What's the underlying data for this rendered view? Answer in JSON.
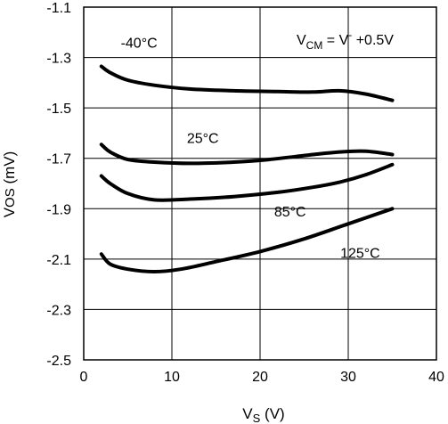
{
  "chart_data": {
    "type": "line",
    "xlabel": "V",
    "xlabel_sub": "S",
    "xlabel_unit": " (V)",
    "ylabel": "V",
    "ylabel_sub": "OS",
    "ylabel_unit": " (mV)",
    "xlim": [
      0,
      40
    ],
    "ylim": [
      -2.5,
      -1.1
    ],
    "x_ticks": [
      0,
      10,
      20,
      30,
      40
    ],
    "y_ticks": [
      -1.1,
      -1.3,
      -1.5,
      -1.7,
      -1.9,
      -2.1,
      -2.3,
      -2.5
    ],
    "x_tick_labels": [
      "0",
      "10",
      "20",
      "30",
      "40"
    ],
    "y_tick_labels": [
      "-1.1",
      "-1.3",
      "-1.5",
      "-1.7",
      "-1.9",
      "-2.1",
      "-2.3",
      "-2.5"
    ],
    "grid": true,
    "legend": "none",
    "condition": {
      "pre": "V",
      "sub": "CM",
      "mid": " = V",
      "sup": "-",
      "post": " +0.5V"
    },
    "series": [
      {
        "name": "-40°C",
        "color": "#000000",
        "x": [
          2,
          3,
          5,
          8,
          12,
          17,
          22,
          26,
          29,
          32,
          35
        ],
        "y": [
          -1.335,
          -1.36,
          -1.39,
          -1.41,
          -1.425,
          -1.432,
          -1.435,
          -1.437,
          -1.432,
          -1.445,
          -1.47
        ]
      },
      {
        "name": "25°C",
        "color": "#000000",
        "x": [
          2,
          3,
          5,
          8,
          12,
          17,
          21,
          26,
          29,
          32,
          35
        ],
        "y": [
          -1.645,
          -1.675,
          -1.705,
          -1.715,
          -1.72,
          -1.715,
          -1.705,
          -1.685,
          -1.675,
          -1.672,
          -1.685
        ]
      },
      {
        "name": "85°C",
        "color": "#000000",
        "x": [
          2,
          3,
          5,
          8,
          12,
          17,
          22,
          26,
          29,
          32,
          35
        ],
        "y": [
          -1.77,
          -1.8,
          -1.84,
          -1.865,
          -1.862,
          -1.852,
          -1.835,
          -1.815,
          -1.795,
          -1.765,
          -1.725
        ]
      },
      {
        "name": "125°C",
        "color": "#000000",
        "x": [
          2,
          3,
          5,
          8,
          11,
          15,
          20,
          25,
          30,
          35
        ],
        "y": [
          -2.08,
          -2.12,
          -2.14,
          -2.15,
          -2.14,
          -2.11,
          -2.07,
          -2.02,
          -1.96,
          -1.9
        ]
      }
    ],
    "series_labels": [
      {
        "text": "-40°C",
        "x": 4.2,
        "y": -1.26
      },
      {
        "text": "25°C",
        "x": 11.7,
        "y": -1.64
      },
      {
        "text": "85°C",
        "x": 21.6,
        "y": -1.93
      },
      {
        "text": "125°C",
        "x": 29.1,
        "y": -2.095
      }
    ]
  }
}
